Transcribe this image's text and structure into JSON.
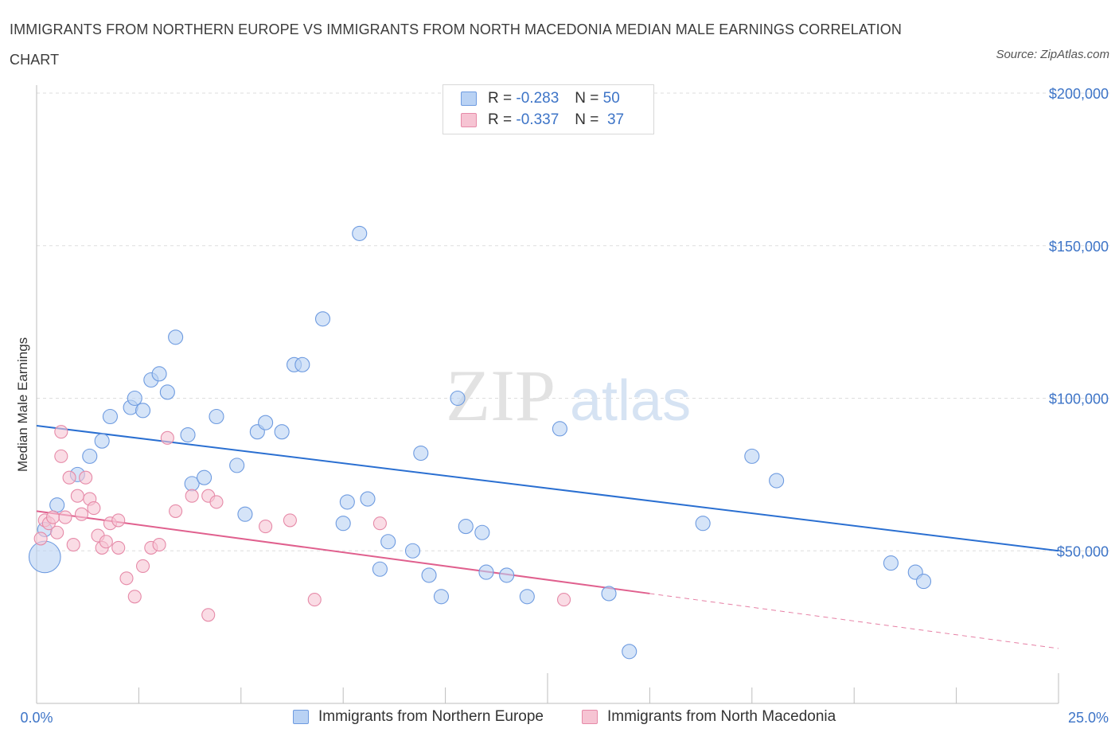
{
  "header": {
    "title": "IMMIGRANTS FROM NORTHERN EUROPE VS IMMIGRANTS FROM NORTH MACEDONIA MEDIAN MALE EARNINGS CORRELATION CHART",
    "source": "Source: ZipAtlas.com"
  },
  "watermark": {
    "zip": "ZIP",
    "atlas": "atlas"
  },
  "legend": {
    "rows": [
      {
        "r_label": "R =",
        "r_value": "-0.283",
        "n_label": "N =",
        "n_value": "50"
      },
      {
        "r_label": "R =",
        "r_value": "-0.337",
        "n_label": "N =",
        "n_value": "37"
      }
    ]
  },
  "colors": {
    "blue_fill": "#b9d2f4",
    "blue_stroke": "#6e9be0",
    "blue_line": "#2a6fd1",
    "pink_fill": "#f6c4d3",
    "pink_stroke": "#e68aa8",
    "pink_line": "#e0608e",
    "accent_text": "#3d74c7",
    "grid": "#dedede"
  },
  "chart_data": {
    "type": "scatter",
    "xlabel": "",
    "ylabel": "Median Male Earnings",
    "x_tick_labels": [
      "0.0%",
      "25.0%"
    ],
    "y_tick_labels": [
      "$50,000",
      "$100,000",
      "$150,000",
      "$200,000"
    ],
    "y_ticks": [
      50000,
      100000,
      150000,
      200000
    ],
    "xlim": [
      0,
      25
    ],
    "ylim": [
      0,
      200000
    ],
    "grid": true,
    "legend_placement": "top-center",
    "series": [
      {
        "name": "Immigrants from Northern Europe",
        "color": "#6e9be0",
        "x": [
          0.2,
          0.5,
          1.0,
          1.3,
          1.6,
          1.8,
          2.3,
          2.6,
          2.4,
          2.8,
          3.0,
          3.2,
          3.4,
          3.7,
          3.8,
          4.1,
          4.4,
          4.9,
          5.1,
          5.4,
          5.6,
          6.0,
          6.3,
          6.5,
          7.0,
          7.5,
          7.6,
          7.9,
          8.1,
          8.4,
          8.6,
          9.2,
          9.4,
          9.6,
          9.9,
          10.3,
          10.5,
          10.9,
          11.0,
          11.5,
          12.0,
          12.8,
          14.0,
          14.5,
          16.3,
          17.5,
          18.1,
          20.9,
          21.5,
          21.7,
          0.2
        ],
        "y": [
          57000,
          65000,
          75000,
          81000,
          86000,
          94000,
          97000,
          96000,
          100000,
          106000,
          108000,
          102000,
          120000,
          88000,
          72000,
          74000,
          94000,
          78000,
          62000,
          89000,
          92000,
          89000,
          111000,
          111000,
          126000,
          59000,
          66000,
          154000,
          67000,
          44000,
          53000,
          50000,
          82000,
          42000,
          35000,
          100000,
          58000,
          56000,
          43000,
          42000,
          35000,
          90000,
          36000,
          17000,
          59000,
          81000,
          73000,
          46000,
          43000,
          40000,
          48000
        ],
        "size": [
          1,
          1,
          1,
          1,
          1,
          1,
          1,
          1,
          1,
          1,
          1,
          1,
          1,
          1,
          1,
          1,
          1,
          1,
          1,
          1,
          1,
          1,
          1,
          1,
          1,
          1,
          1,
          1,
          1,
          1,
          1,
          1,
          1,
          1,
          1,
          1,
          1,
          1,
          1,
          1,
          1,
          1,
          1,
          1,
          1,
          1,
          1,
          1,
          1,
          1,
          2.2
        ],
        "trend": {
          "x": [
            0,
            25
          ],
          "y": [
            91000,
            50000
          ]
        }
      },
      {
        "name": "Immigrants from North Macedonia",
        "color": "#e68aa8",
        "x": [
          0.1,
          0.2,
          0.3,
          0.4,
          0.5,
          0.6,
          0.6,
          0.7,
          0.8,
          0.9,
          1.0,
          1.1,
          1.2,
          1.3,
          1.4,
          1.5,
          1.6,
          1.7,
          1.8,
          2.0,
          2.0,
          2.2,
          2.4,
          2.6,
          2.8,
          3.0,
          3.2,
          3.4,
          3.8,
          4.2,
          4.2,
          4.4,
          5.6,
          6.2,
          6.8,
          8.4,
          12.9
        ],
        "y": [
          54000,
          60000,
          59000,
          61000,
          56000,
          81000,
          89000,
          61000,
          74000,
          52000,
          68000,
          62000,
          74000,
          67000,
          64000,
          55000,
          51000,
          53000,
          59000,
          51000,
          60000,
          41000,
          35000,
          45000,
          51000,
          52000,
          87000,
          63000,
          68000,
          68000,
          29000,
          66000,
          58000,
          60000,
          34000,
          59000,
          34000
        ],
        "trend": {
          "x": [
            0,
            15
          ],
          "y": [
            63000,
            36000
          ],
          "dashed_extension": {
            "x": [
              15,
              25
            ],
            "y": [
              36000,
              18000
            ]
          }
        }
      }
    ]
  }
}
